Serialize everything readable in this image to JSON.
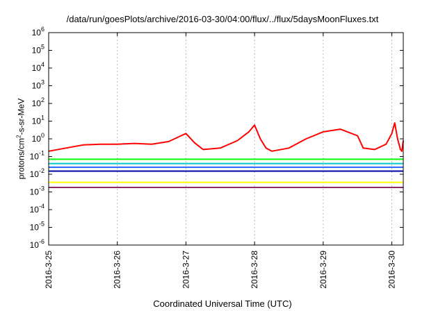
{
  "chart_data": {
    "type": "line",
    "title": "/data/run/goesPlots/archive/2016-03-30/04:00/flux/../flux/5daysMoonFluxes.txt",
    "xlabel": "Coordinated Universal Time (UTC)",
    "ylabel": {
      "pre": "protons/cm",
      "sup": "2",
      "post": "-s-sr-MeV"
    },
    "y_scale": "log",
    "ylim": [
      1e-06,
      1000000.0
    ],
    "ytick_labels": [
      {
        "base": "10",
        "exp": "-6"
      },
      {
        "base": "10",
        "exp": "-5"
      },
      {
        "base": "10",
        "exp": "-4"
      },
      {
        "base": "10",
        "exp": "-3"
      },
      {
        "base": "10",
        "exp": "-2"
      },
      {
        "base": "10",
        "exp": "-1"
      },
      {
        "base": "10",
        "exp": "0"
      },
      {
        "base": "10",
        "exp": "1"
      },
      {
        "base": "10",
        "exp": "2"
      },
      {
        "base": "10",
        "exp": "3"
      },
      {
        "base": "10",
        "exp": "4"
      },
      {
        "base": "10",
        "exp": "5"
      },
      {
        "base": "10",
        "exp": "6"
      }
    ],
    "xlim": [
      "2016-03-25T00:00",
      "2016-03-30T04:00"
    ],
    "xtick_labels": [
      "2016-3-25",
      "2016-3-26",
      "2016-3-27",
      "2016-3-28",
      "2016-3-29",
      "2016-3-30"
    ],
    "grid": {
      "vertical": true,
      "horizontal": false
    },
    "series": [
      {
        "color": "#ff0000",
        "points": [
          [
            "2016-03-25T00:00",
            0.2
          ],
          [
            "2016-03-25T06:00",
            0.3
          ],
          [
            "2016-03-25T12:00",
            0.45
          ],
          [
            "2016-03-25T18:00",
            0.5
          ],
          [
            "2016-03-26T00:00",
            0.5
          ],
          [
            "2016-03-26T06:00",
            0.55
          ],
          [
            "2016-03-26T12:00",
            0.5
          ],
          [
            "2016-03-26T18:00",
            0.7
          ],
          [
            "2016-03-26T21:00",
            1.2
          ],
          [
            "2016-03-27T00:00",
            2.0
          ],
          [
            "2016-03-27T03:00",
            0.6
          ],
          [
            "2016-03-27T06:00",
            0.25
          ],
          [
            "2016-03-27T12:00",
            0.3
          ],
          [
            "2016-03-27T18:00",
            0.8
          ],
          [
            "2016-03-27T22:00",
            2.5
          ],
          [
            "2016-03-28T00:00",
            6.0
          ],
          [
            "2016-03-28T02:00",
            1.0
          ],
          [
            "2016-03-28T04:00",
            0.3
          ],
          [
            "2016-03-28T06:00",
            0.2
          ],
          [
            "2016-03-28T12:00",
            0.3
          ],
          [
            "2016-03-28T18:00",
            1.0
          ],
          [
            "2016-03-29T00:00",
            2.5
          ],
          [
            "2016-03-29T06:00",
            3.5
          ],
          [
            "2016-03-29T12:00",
            1.5
          ],
          [
            "2016-03-29T14:00",
            0.3
          ],
          [
            "2016-03-29T18:00",
            0.25
          ],
          [
            "2016-03-29T22:00",
            0.5
          ],
          [
            "2016-03-30T00:00",
            2.0
          ],
          [
            "2016-03-30T01:00",
            8.0
          ],
          [
            "2016-03-30T02:00",
            1.0
          ],
          [
            "2016-03-30T03:00",
            0.25
          ],
          [
            "2016-03-30T03:30",
            0.2
          ],
          [
            "2016-03-30T04:00",
            0.8
          ]
        ]
      },
      {
        "color": "#00ff00",
        "points": [
          [
            "2016-03-25T00:00",
            0.07
          ],
          [
            "2016-03-26T00:00",
            0.07
          ],
          [
            "2016-03-27T00:00",
            0.07
          ],
          [
            "2016-03-28T00:00",
            0.07
          ],
          [
            "2016-03-29T00:00",
            0.07
          ],
          [
            "2016-03-30T00:00",
            0.07
          ],
          [
            "2016-03-30T04:00",
            0.07
          ]
        ]
      },
      {
        "color": "#00c8c8",
        "points": [
          [
            "2016-03-25T00:00",
            0.04
          ],
          [
            "2016-03-26T00:00",
            0.04
          ],
          [
            "2016-03-27T00:00",
            0.04
          ],
          [
            "2016-03-28T00:00",
            0.04
          ],
          [
            "2016-03-29T00:00",
            0.04
          ],
          [
            "2016-03-30T00:00",
            0.04
          ],
          [
            "2016-03-30T04:00",
            0.04
          ]
        ]
      },
      {
        "color": "#1e64ff",
        "points": [
          [
            "2016-03-25T00:00",
            0.025
          ],
          [
            "2016-03-26T00:00",
            0.025
          ],
          [
            "2016-03-27T00:00",
            0.025
          ],
          [
            "2016-03-28T00:00",
            0.025
          ],
          [
            "2016-03-29T00:00",
            0.025
          ],
          [
            "2016-03-30T00:00",
            0.025
          ],
          [
            "2016-03-30T04:00",
            0.025
          ]
        ]
      },
      {
        "color": "#0000a0",
        "points": [
          [
            "2016-03-25T00:00",
            0.015
          ],
          [
            "2016-03-26T00:00",
            0.015
          ],
          [
            "2016-03-27T00:00",
            0.015
          ],
          [
            "2016-03-28T00:00",
            0.015
          ],
          [
            "2016-03-29T00:00",
            0.015
          ],
          [
            "2016-03-30T00:00",
            0.015
          ],
          [
            "2016-03-30T04:00",
            0.015
          ]
        ]
      },
      {
        "color": "#ffff00",
        "points": [
          [
            "2016-03-25T00:00",
            0.0035
          ],
          [
            "2016-03-26T00:00",
            0.0035
          ],
          [
            "2016-03-27T00:00",
            0.0035
          ],
          [
            "2016-03-28T00:00",
            0.0035
          ],
          [
            "2016-03-29T00:00",
            0.0035
          ],
          [
            "2016-03-30T00:00",
            0.0035
          ],
          [
            "2016-03-30T04:00",
            0.0035
          ]
        ]
      },
      {
        "color": "#8b2a6e",
        "points": [
          [
            "2016-03-25T00:00",
            0.0018
          ],
          [
            "2016-03-26T00:00",
            0.0018
          ],
          [
            "2016-03-27T00:00",
            0.0018
          ],
          [
            "2016-03-28T00:00",
            0.0018
          ],
          [
            "2016-03-29T00:00",
            0.0018
          ],
          [
            "2016-03-30T00:00",
            0.0018
          ],
          [
            "2016-03-30T04:00",
            0.0018
          ]
        ]
      }
    ]
  }
}
